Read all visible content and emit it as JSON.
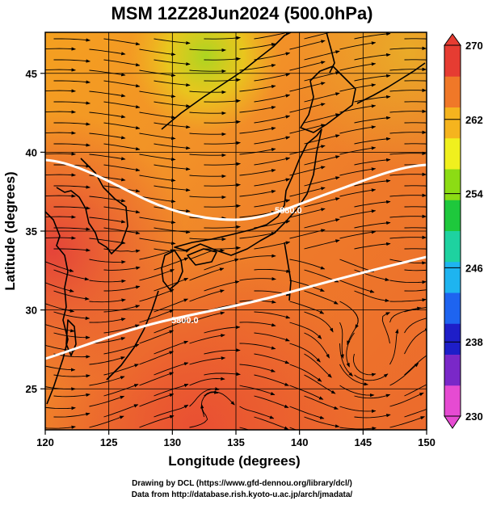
{
  "title": "MSM 12Z28Jun2024 (500.0hPa)",
  "x_axis": {
    "label": "Longitude (degrees)",
    "ticks": [
      "120",
      "125",
      "130",
      "135",
      "140",
      "145",
      "150"
    ],
    "range": [
      120,
      150
    ]
  },
  "y_axis": {
    "label": "Latitude  (degrees)",
    "ticks": [
      "25",
      "30",
      "35",
      "40",
      "45"
    ],
    "range": [
      22.4,
      47.6
    ]
  },
  "colorbar": {
    "ticks": [
      "230",
      "238",
      "246",
      "254",
      "262",
      "270"
    ],
    "range": [
      230,
      270
    ],
    "colors": [
      "#e64bd2",
      "#7a28c8",
      "#1e1ec8",
      "#1e64f0",
      "#1eb4f0",
      "#1ed2a0",
      "#1ec83c",
      "#8cdc14",
      "#f0f01e",
      "#f5b41e",
      "#f07828",
      "#e63c32"
    ]
  },
  "contours": [
    {
      "label": "5880.0",
      "color": "#ffffff"
    },
    {
      "label": "5800.0",
      "color": "#ffffff"
    }
  ],
  "credits": {
    "line1": "Drawing by DCL (https://www.gfd-dennou.org/library/dcl/)",
    "line2": "Data from http://database.rish.kyoto-u.ac.jp/arch/jmadata/"
  }
}
